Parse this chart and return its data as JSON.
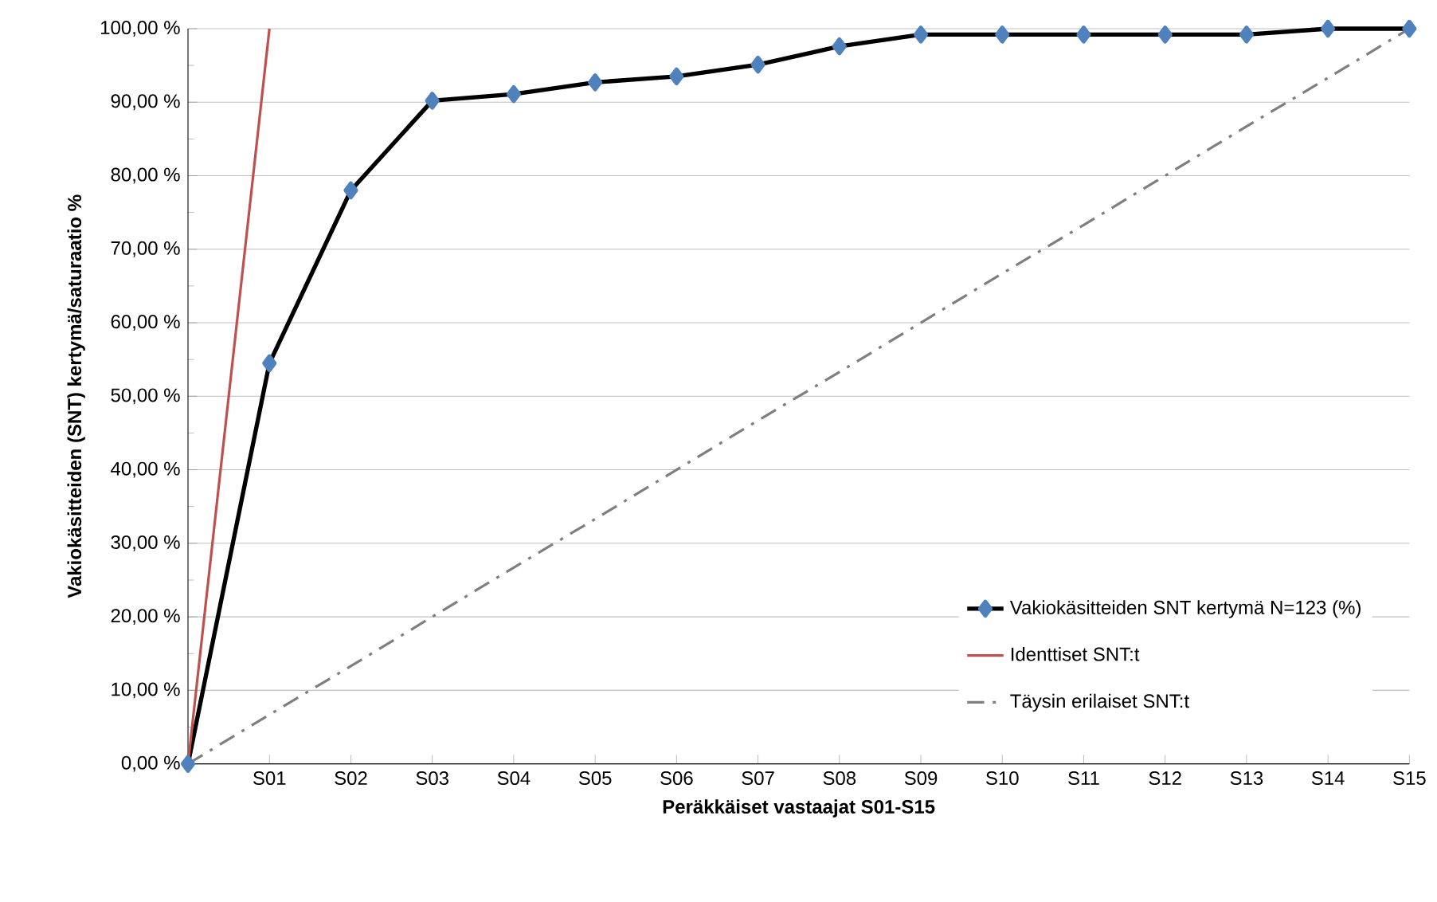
{
  "chart_data": {
    "type": "line",
    "xlabel": "Peräkkäiset vastaajat S01-S15",
    "ylabel": "Vakiokäsitteiden (SNT) kertymä/saturaatio %",
    "categories": [
      null,
      "S01",
      "S02",
      "S03",
      "S04",
      "S05",
      "S06",
      "S07",
      "S08",
      "S09",
      "S10",
      "S11",
      "S12",
      "S13",
      "S14",
      "S15"
    ],
    "series": [
      {
        "name": "Vakiokäsitteiden SNT kertymä N=123 (%)",
        "color": "#000000",
        "marker": "diamond",
        "line_style": "solid",
        "values": [
          0,
          54.5,
          78.0,
          90.2,
          91.1,
          92.7,
          93.5,
          95.1,
          97.6,
          99.2,
          99.2,
          99.2,
          99.2,
          99.2,
          100,
          100
        ]
      },
      {
        "name": "Identtiset SNT:t",
        "color": "#c0504d",
        "marker": "none",
        "line_style": "solid",
        "values": [
          0,
          100,
          null,
          null,
          null,
          null,
          null,
          null,
          null,
          null,
          null,
          null,
          null,
          null,
          null,
          null
        ]
      },
      {
        "name": "Täysin erilaiset SNT:t",
        "color": "#7f7f7f",
        "marker": "none",
        "line_style": "dashdot",
        "values": [
          0,
          6.7,
          13.3,
          20,
          26.7,
          33.3,
          40,
          46.7,
          53.3,
          60,
          66.7,
          73.3,
          80,
          86.7,
          93.3,
          100
        ]
      }
    ],
    "ylim": [
      0,
      100
    ],
    "yticks": [
      {
        "value": 0,
        "label": "0,00 %"
      },
      {
        "value": 10,
        "label": "10,00 %"
      },
      {
        "value": 20,
        "label": "20,00 %"
      },
      {
        "value": 30,
        "label": "30,00 %"
      },
      {
        "value": 40,
        "label": "40,00 %"
      },
      {
        "value": 50,
        "label": "50,00 %"
      },
      {
        "value": 60,
        "label": "60,00 %"
      },
      {
        "value": 70,
        "label": "70,00 %"
      },
      {
        "value": 80,
        "label": "80,00 %"
      },
      {
        "value": 90,
        "label": "90,00 %"
      },
      {
        "value": 100,
        "label": "100,00 %"
      }
    ],
    "grid": "y",
    "legend": "bottom right"
  }
}
